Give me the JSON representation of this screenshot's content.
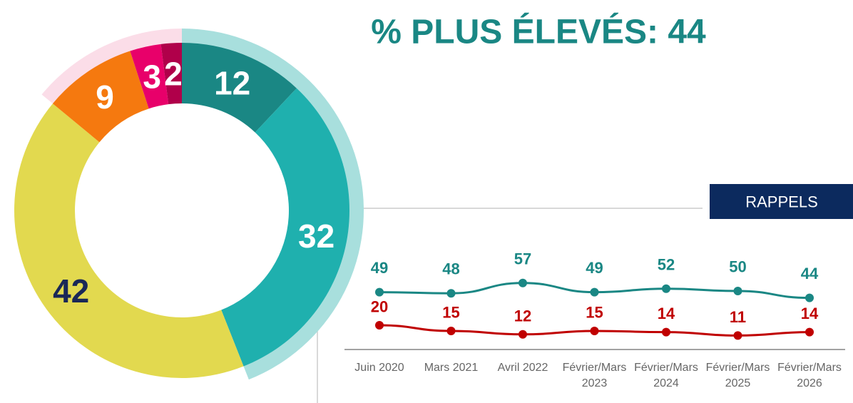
{
  "chart_data": [
    {
      "type": "pie",
      "title": "% PLUS ÉLEVÉS: 44",
      "values": [
        12,
        32,
        42,
        9,
        3,
        2
      ],
      "colors": [
        "#1a8784",
        "#1fb0ae",
        "#e2d94f",
        "#f5790f",
        "#e8006a",
        "#b0004a"
      ],
      "label_colors": [
        "#ffffff",
        "#ffffff",
        "#1a2857",
        "#ffffff",
        "#ffffff",
        "#ffffff"
      ]
    },
    {
      "type": "line",
      "title": "RAPPELS",
      "categories": [
        "Juin 2020",
        "Mars 2021",
        "Avril 2022",
        "Février/Mars 2023",
        "Février/Mars 2024",
        "Février/Mars 2025",
        "Février/Mars 2026"
      ],
      "series": [
        {
          "color": "#1a8784",
          "values": [
            49,
            48,
            57,
            49,
            52,
            50,
            44
          ]
        },
        {
          "color": "#c00000",
          "values": [
            20,
            15,
            12,
            15,
            14,
            11,
            14
          ]
        }
      ],
      "ylim": [
        0,
        100
      ]
    }
  ]
}
